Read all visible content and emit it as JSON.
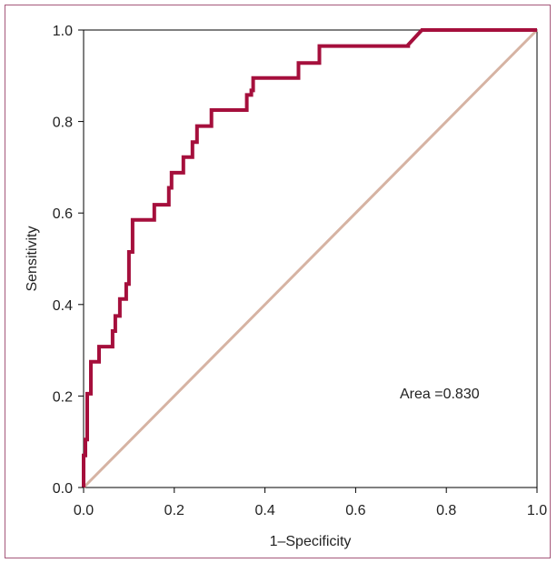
{
  "chart_data": {
    "type": "line",
    "title": "",
    "xlabel": "1–Specificity",
    "ylabel": "Sensitivity",
    "xlim": [
      0,
      1
    ],
    "ylim": [
      0,
      1
    ],
    "x_ticks": [
      "0.0",
      "0.2",
      "0.4",
      "0.6",
      "0.8",
      "1.0"
    ],
    "y_ticks": [
      "0.0",
      "0.2",
      "0.4",
      "0.6",
      "0.8",
      "1.0"
    ],
    "grid": false,
    "annotation": "Area =0.830",
    "colors": {
      "roc": "#a50f3c",
      "reference": "#d6b3a3",
      "frame": "#a5587a"
    },
    "series": [
      {
        "role": "roc-curve",
        "points": [
          [
            0.0,
            0.0
          ],
          [
            0.0,
            0.07
          ],
          [
            0.004,
            0.07
          ],
          [
            0.004,
            0.105
          ],
          [
            0.008,
            0.105
          ],
          [
            0.008,
            0.205
          ],
          [
            0.016,
            0.205
          ],
          [
            0.016,
            0.275
          ],
          [
            0.034,
            0.275
          ],
          [
            0.034,
            0.308
          ],
          [
            0.064,
            0.308
          ],
          [
            0.064,
            0.342
          ],
          [
            0.07,
            0.342
          ],
          [
            0.07,
            0.375
          ],
          [
            0.08,
            0.375
          ],
          [
            0.08,
            0.412
          ],
          [
            0.094,
            0.412
          ],
          [
            0.094,
            0.445
          ],
          [
            0.1,
            0.445
          ],
          [
            0.1,
            0.515
          ],
          [
            0.108,
            0.515
          ],
          [
            0.108,
            0.585
          ],
          [
            0.156,
            0.585
          ],
          [
            0.156,
            0.618
          ],
          [
            0.188,
            0.618
          ],
          [
            0.188,
            0.655
          ],
          [
            0.194,
            0.655
          ],
          [
            0.194,
            0.688
          ],
          [
            0.22,
            0.688
          ],
          [
            0.22,
            0.722
          ],
          [
            0.24,
            0.722
          ],
          [
            0.24,
            0.755
          ],
          [
            0.25,
            0.755
          ],
          [
            0.25,
            0.79
          ],
          [
            0.282,
            0.79
          ],
          [
            0.282,
            0.825
          ],
          [
            0.36,
            0.825
          ],
          [
            0.36,
            0.858
          ],
          [
            0.37,
            0.858
          ],
          [
            0.37,
            0.868
          ],
          [
            0.374,
            0.868
          ],
          [
            0.374,
            0.895
          ],
          [
            0.474,
            0.895
          ],
          [
            0.474,
            0.928
          ],
          [
            0.52,
            0.928
          ],
          [
            0.52,
            0.965
          ],
          [
            0.716,
            0.965
          ],
          [
            0.716,
            0.968
          ],
          [
            0.746,
            1.0
          ],
          [
            1.0,
            1.0
          ]
        ]
      },
      {
        "role": "reference-line",
        "points": [
          [
            0,
            0
          ],
          [
            1,
            1
          ]
        ]
      }
    ]
  }
}
